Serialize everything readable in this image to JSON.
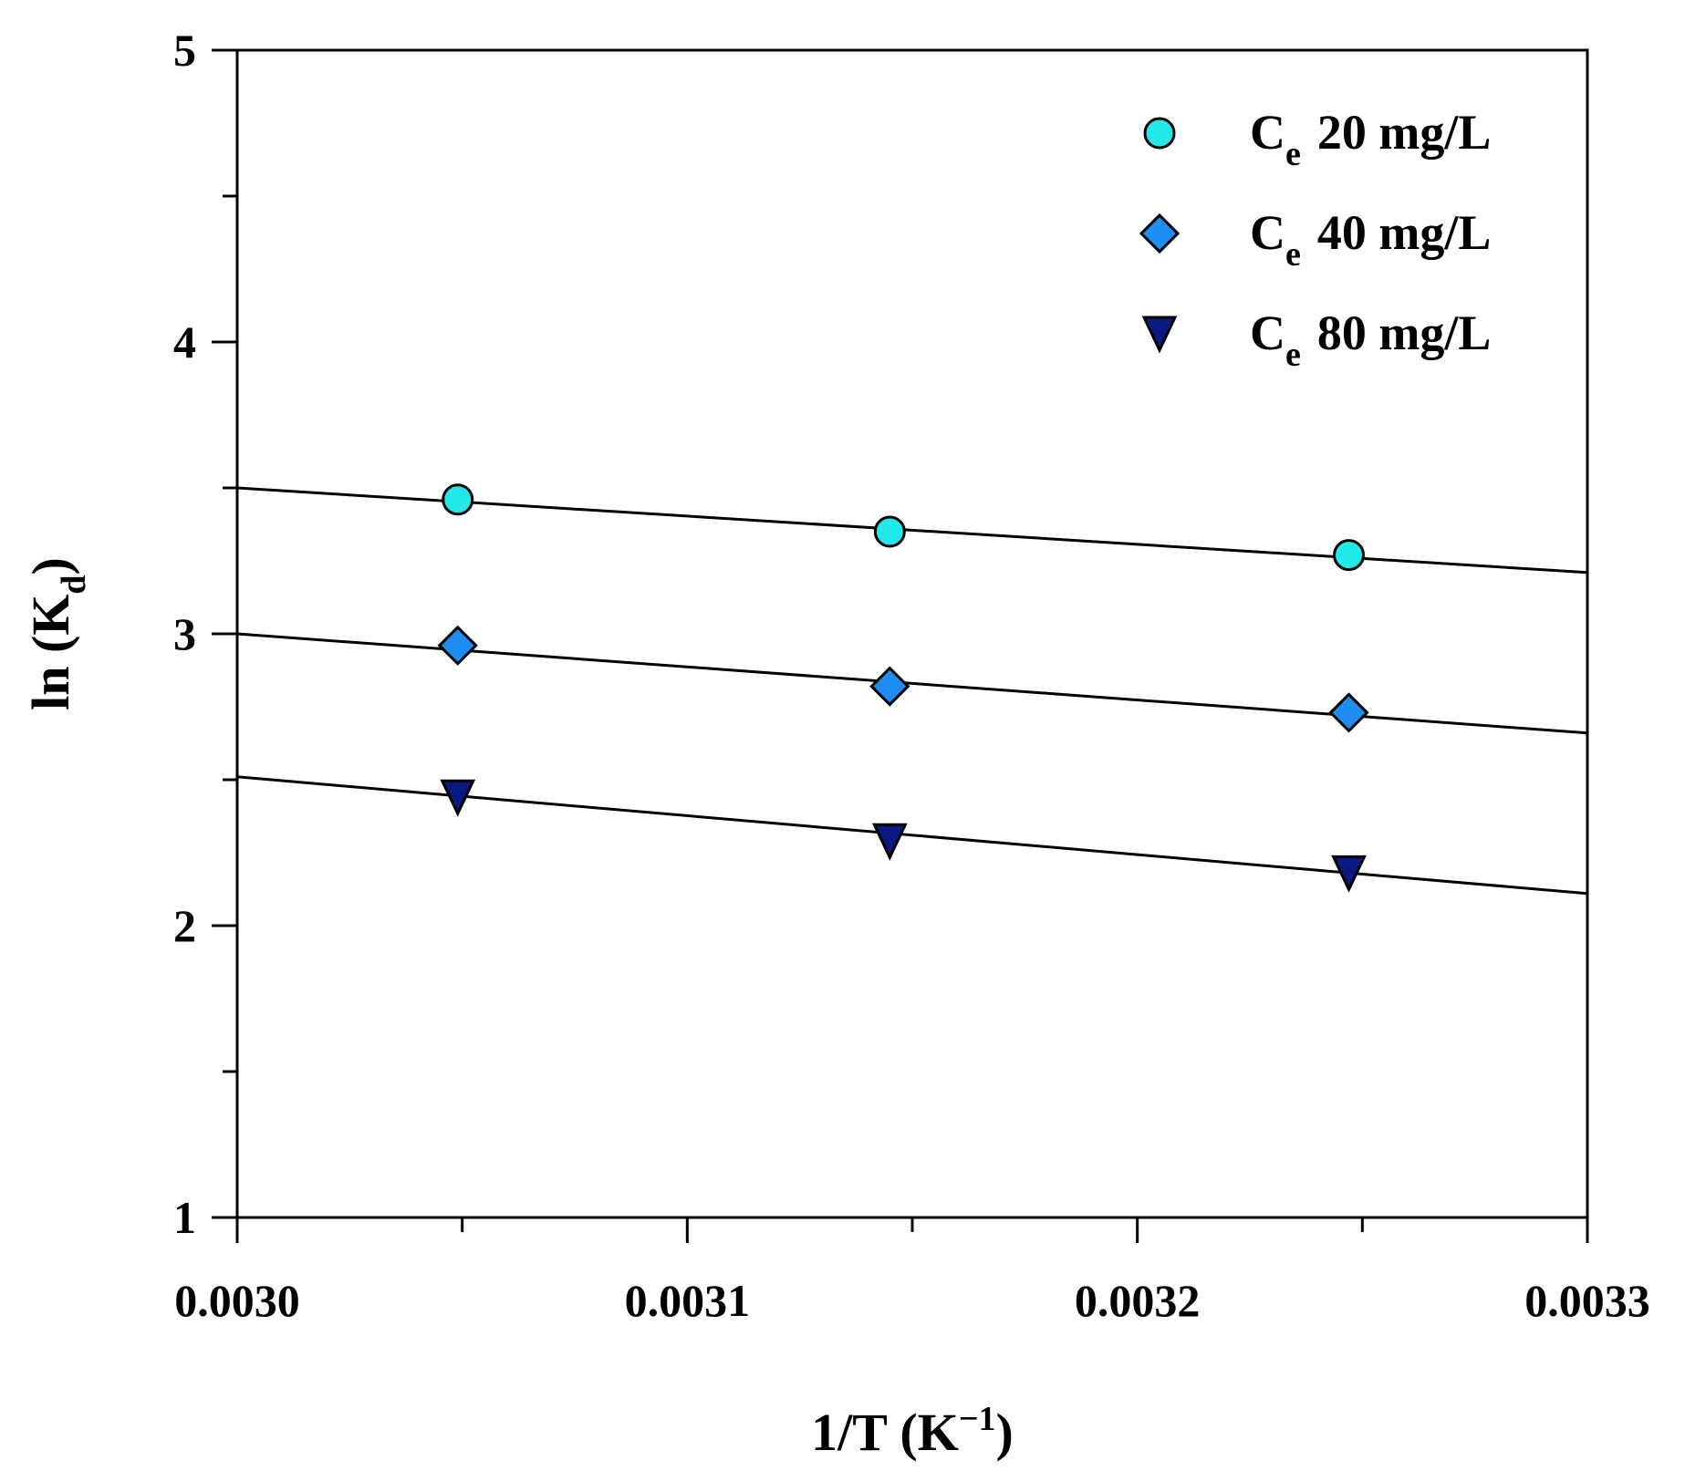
{
  "chart_data": {
    "type": "scatter",
    "title": "",
    "xlabel": {
      "main": "1/T (K",
      "sup": "−1",
      "end": ")"
    },
    "ylabel": {
      "main": "ln (K",
      "sub": "d",
      "end": ")"
    },
    "xlim": [
      0.003,
      0.0033
    ],
    "ylim": [
      1,
      5
    ],
    "x_ticks": [
      0.003,
      0.0031,
      0.0032,
      0.0033
    ],
    "x_tick_labels": [
      "0.0030",
      "0.0031",
      "0.0032",
      "0.0033"
    ],
    "x_minor_ticks": [
      0.00305,
      0.00315,
      0.00325
    ],
    "y_ticks": [
      1,
      2,
      3,
      4,
      5
    ],
    "y_tick_labels": [
      "1",
      "2",
      "3",
      "4",
      "5"
    ],
    "y_minor_ticks": [
      1.5,
      2.5,
      3.5,
      4.5
    ],
    "grid": false,
    "legend_position": "top-right",
    "series": [
      {
        "name": "Ce 20 mg/L",
        "legend_main": "C",
        "legend_sub": "e",
        "legend_text": "20 mg/L",
        "marker": "circle",
        "color": "#22e8e8",
        "x": [
          0.003049,
          0.003145,
          0.003247
        ],
        "y": [
          3.46,
          3.35,
          3.27
        ],
        "fit": {
          "x": [
            0.003,
            0.0033
          ],
          "y": [
            3.5,
            3.21
          ]
        }
      },
      {
        "name": "Ce 40 mg/L",
        "legend_main": "C",
        "legend_sub": "e",
        "legend_text": "40 mg/L",
        "marker": "diamond",
        "color": "#1f8cf0",
        "x": [
          0.003049,
          0.003145,
          0.003247
        ],
        "y": [
          2.96,
          2.82,
          2.73
        ],
        "fit": {
          "x": [
            0.003,
            0.0033
          ],
          "y": [
            3.0,
            2.66
          ]
        }
      },
      {
        "name": "Ce 80 mg/L",
        "legend_main": "C",
        "legend_sub": "e",
        "legend_text": "80 mg/L",
        "marker": "triangle-down",
        "color": "#0b1a80",
        "x": [
          0.003049,
          0.003145,
          0.003247
        ],
        "y": [
          2.44,
          2.29,
          2.18
        ],
        "fit": {
          "x": [
            0.003,
            0.0033
          ],
          "y": [
            2.51,
            2.11
          ]
        }
      }
    ]
  }
}
